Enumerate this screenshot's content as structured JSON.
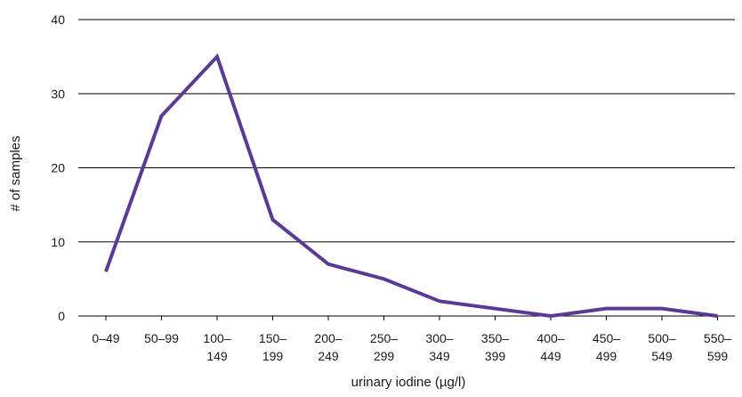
{
  "chart_data": {
    "type": "line",
    "title": "",
    "xlabel": "urinary iodine (µg/l)",
    "ylabel": "# of samples",
    "ylim": [
      0,
      40
    ],
    "yticks": [
      0,
      10,
      20,
      30,
      40
    ],
    "grid": "horizontal",
    "categories": [
      [
        "0–49"
      ],
      [
        "50–99"
      ],
      [
        "100–",
        "149"
      ],
      [
        "150–",
        "199"
      ],
      [
        "200–",
        "249"
      ],
      [
        "250–",
        "299"
      ],
      [
        "300–",
        "349"
      ],
      [
        "350–",
        "399"
      ],
      [
        "400–",
        "449"
      ],
      [
        "450–",
        "499"
      ],
      [
        "500–",
        "549"
      ],
      [
        "550–",
        "599"
      ]
    ],
    "series": [
      {
        "values": [
          6,
          27,
          35,
          13,
          7,
          5,
          2,
          1,
          0,
          1,
          1,
          0
        ]
      }
    ],
    "colors": {
      "line": "#5b3a96",
      "grid": "#000000"
    }
  }
}
